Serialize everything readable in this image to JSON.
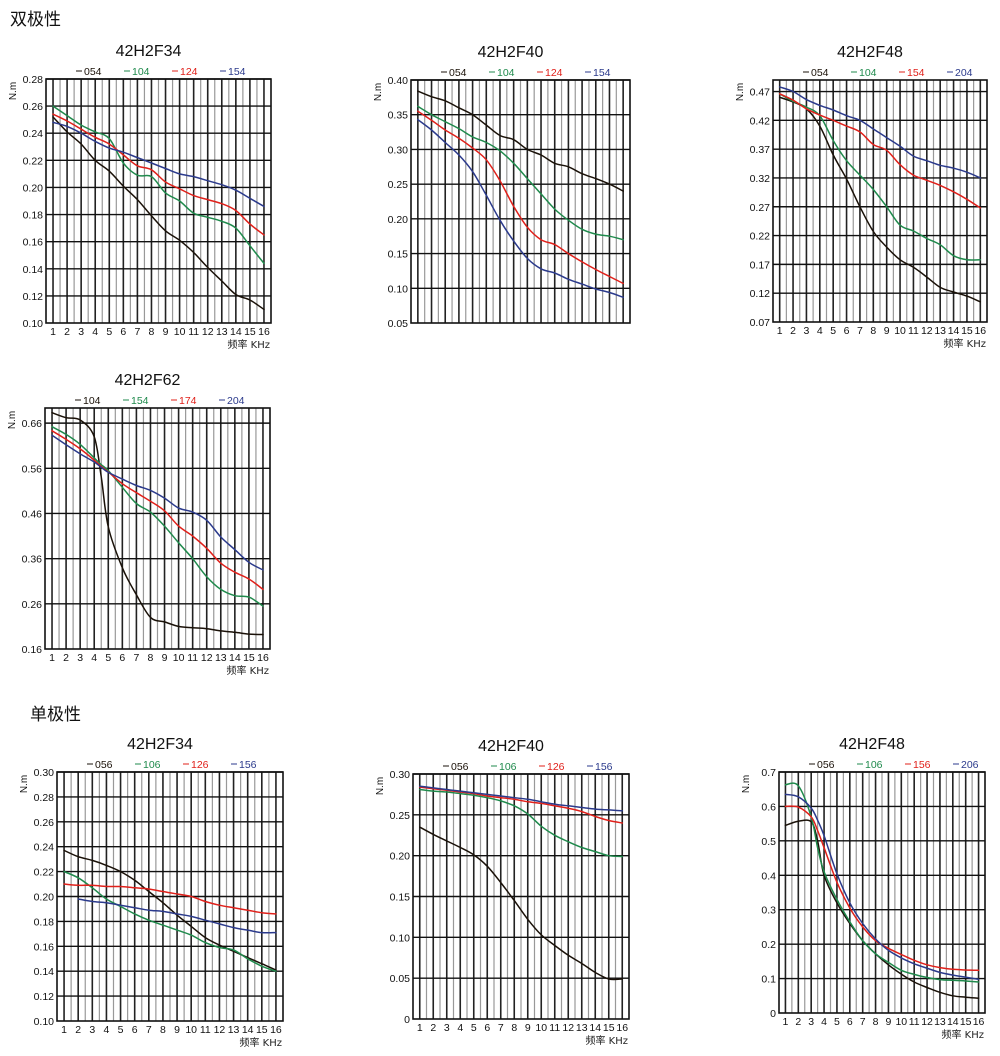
{
  "sections": {
    "bipolar": "双极性",
    "unipolar": "单极性"
  },
  "colors": {
    "black": "#1a1108",
    "green": "#1f8a4c",
    "red": "#e0201a",
    "blue": "#2b3a8c",
    "grid": "#111111"
  },
  "chart_data": [
    {
      "id": "bipolar-42H2F34",
      "type": "line",
      "title": "42H2F34",
      "xlabel": "频率 KHz",
      "ylabel": "N.m",
      "xlim": [
        1,
        16
      ],
      "ylim": [
        0.1,
        0.28
      ],
      "yticks": [
        "0.10",
        "0.12",
        "0.14",
        "0.16",
        "0.18",
        "0.20",
        "0.22",
        "0.24",
        "0.26",
        "0.28"
      ],
      "xticks": [
        "1",
        "2",
        "3",
        "4",
        "5",
        "6",
        "7",
        "8",
        "9",
        "10",
        "11",
        "12",
        "13",
        "14",
        "15",
        "16"
      ],
      "show_xticks": true,
      "grid": true,
      "legend_position": "top",
      "x": [
        1,
        2,
        3,
        4,
        5,
        6,
        7,
        8,
        9,
        10,
        11,
        12,
        13,
        14,
        15,
        16
      ],
      "series": [
        {
          "name": "054",
          "color": "black",
          "values": [
            0.252,
            0.241,
            0.232,
            0.22,
            0.212,
            0.201,
            0.191,
            0.179,
            0.168,
            0.161,
            0.152,
            0.141,
            0.131,
            0.121,
            0.117,
            0.11
          ]
        },
        {
          "name": "104",
          "color": "green",
          "values": [
            0.26,
            0.253,
            0.246,
            0.241,
            0.236,
            0.218,
            0.209,
            0.208,
            0.196,
            0.19,
            0.181,
            0.178,
            0.175,
            0.17,
            0.157,
            0.144
          ]
        },
        {
          "name": "124",
          "color": "red",
          "values": [
            0.254,
            0.249,
            0.243,
            0.237,
            0.232,
            0.224,
            0.216,
            0.213,
            0.204,
            0.199,
            0.194,
            0.191,
            0.188,
            0.183,
            0.173,
            0.165
          ]
        },
        {
          "name": "154",
          "color": "blue",
          "values": [
            0.248,
            0.245,
            0.24,
            0.234,
            0.229,
            0.226,
            0.222,
            0.218,
            0.214,
            0.21,
            0.208,
            0.205,
            0.202,
            0.198,
            0.192,
            0.186
          ]
        }
      ]
    },
    {
      "id": "bipolar-42H2F40",
      "type": "line",
      "title": "42H2F40",
      "xlabel": "",
      "ylabel": "N.m",
      "xlim": [
        1,
        16
      ],
      "ylim": [
        0.05,
        0.4
      ],
      "yticks": [
        "0.05",
        "0.10",
        "0.15",
        "0.20",
        "0.25",
        "0.30",
        "0.35",
        "0.40"
      ],
      "xticks": [],
      "show_xticks": false,
      "grid": true,
      "legend_position": "top",
      "x": [
        1,
        2,
        3,
        4,
        5,
        6,
        7,
        8,
        9,
        10,
        11,
        12,
        13,
        14,
        15,
        16
      ],
      "series": [
        {
          "name": "054",
          "color": "black",
          "values": [
            0.384,
            0.376,
            0.37,
            0.36,
            0.35,
            0.335,
            0.32,
            0.314,
            0.3,
            0.292,
            0.28,
            0.275,
            0.265,
            0.258,
            0.25,
            0.24
          ]
        },
        {
          "name": "104",
          "color": "green",
          "values": [
            0.362,
            0.35,
            0.34,
            0.33,
            0.318,
            0.31,
            0.298,
            0.28,
            0.258,
            0.236,
            0.214,
            0.198,
            0.185,
            0.178,
            0.175,
            0.17
          ]
        },
        {
          "name": "124",
          "color": "red",
          "values": [
            0.355,
            0.342,
            0.328,
            0.316,
            0.302,
            0.285,
            0.255,
            0.218,
            0.188,
            0.17,
            0.163,
            0.15,
            0.138,
            0.127,
            0.117,
            0.107
          ]
        },
        {
          "name": "154",
          "color": "blue",
          "values": [
            0.343,
            0.328,
            0.31,
            0.292,
            0.268,
            0.234,
            0.198,
            0.168,
            0.143,
            0.128,
            0.122,
            0.113,
            0.106,
            0.099,
            0.094,
            0.087
          ]
        }
      ]
    },
    {
      "id": "bipolar-42H2F48",
      "type": "line",
      "title": "42H2F48",
      "xlabel": "频率 KHz",
      "ylabel": "N.m",
      "xlim": [
        1,
        16
      ],
      "ylim": [
        0.07,
        0.5
      ],
      "yticks": [
        "0.07",
        "0.12",
        "0.17",
        "0.22",
        "0.27",
        "0.32",
        "0.37",
        "0.42",
        "0.47"
      ],
      "xticks": [
        "1",
        "2",
        "3",
        "4",
        "5",
        "6",
        "7",
        "8",
        "9",
        "10",
        "11",
        "12",
        "13",
        "14",
        "15",
        "16"
      ],
      "show_xticks": true,
      "grid": true,
      "legend_position": "top",
      "x": [
        1,
        2,
        3,
        4,
        5,
        6,
        7,
        8,
        9,
        10,
        11,
        12,
        13,
        14,
        15,
        16
      ],
      "series": [
        {
          "name": "054",
          "color": "black",
          "values": [
            0.46,
            0.452,
            0.44,
            0.41,
            0.36,
            0.318,
            0.27,
            0.227,
            0.2,
            0.178,
            0.165,
            0.148,
            0.13,
            0.122,
            0.115,
            0.105
          ]
        },
        {
          "name": "104",
          "color": "green",
          "values": [
            0.466,
            0.453,
            0.443,
            0.428,
            0.385,
            0.35,
            0.325,
            0.3,
            0.27,
            0.238,
            0.228,
            0.215,
            0.204,
            0.185,
            0.178,
            0.178
          ]
        },
        {
          "name": "154",
          "color": "red",
          "values": [
            0.466,
            0.455,
            0.44,
            0.429,
            0.42,
            0.41,
            0.4,
            0.378,
            0.368,
            0.343,
            0.325,
            0.316,
            0.307,
            0.296,
            0.283,
            0.268
          ]
        },
        {
          "name": "204",
          "color": "blue",
          "values": [
            0.478,
            0.47,
            0.456,
            0.446,
            0.438,
            0.428,
            0.42,
            0.405,
            0.39,
            0.375,
            0.358,
            0.35,
            0.342,
            0.337,
            0.33,
            0.32
          ]
        }
      ]
    },
    {
      "id": "bipolar-42H2F62",
      "type": "line",
      "title": "42H2F62",
      "xlabel": "频率 KHz",
      "ylabel": "N.m",
      "xlim": [
        1,
        16
      ],
      "ylim": [
        0.16,
        0.71
      ],
      "yticks": [
        "0.16",
        "0.26",
        "0.36",
        "0.46",
        "0.56",
        "0.66"
      ],
      "xticks": [
        "1",
        "2",
        "3",
        "4",
        "5",
        "6",
        "7",
        "8",
        "9",
        "10",
        "11",
        "12",
        "13",
        "14",
        "15",
        "16"
      ],
      "show_xticks": true,
      "grid": true,
      "legend_position": "top",
      "x": [
        1,
        2,
        3,
        4,
        4.5,
        5,
        6,
        7,
        8,
        9,
        10,
        11,
        12,
        13,
        14,
        15,
        16
      ],
      "series": [
        {
          "name": "104",
          "color": "black",
          "values": [
            0.683,
            0.672,
            0.667,
            0.63,
            0.54,
            0.43,
            0.34,
            0.28,
            0.23,
            0.22,
            0.21,
            0.207,
            0.205,
            0.2,
            0.197,
            0.193,
            0.192
          ]
        },
        {
          "name": "154",
          "color": "green",
          "values": [
            0.652,
            0.635,
            0.613,
            0.583,
            0.568,
            0.555,
            0.518,
            0.482,
            0.463,
            0.432,
            0.395,
            0.36,
            0.32,
            0.292,
            0.278,
            0.275,
            0.255
          ]
        },
        {
          "name": "174",
          "color": "red",
          "values": [
            0.643,
            0.624,
            0.603,
            0.578,
            0.564,
            0.552,
            0.526,
            0.506,
            0.487,
            0.466,
            0.432,
            0.41,
            0.383,
            0.35,
            0.33,
            0.315,
            0.292
          ]
        },
        {
          "name": "204",
          "color": "blue",
          "values": [
            0.633,
            0.612,
            0.592,
            0.574,
            0.562,
            0.551,
            0.536,
            0.522,
            0.511,
            0.494,
            0.472,
            0.463,
            0.445,
            0.408,
            0.38,
            0.352,
            0.335
          ]
        }
      ]
    },
    {
      "id": "unipolar-42H2F34",
      "type": "line",
      "title": "42H2F34",
      "xlabel": "频率 KHz",
      "ylabel": "N.m",
      "xlim": [
        1,
        16
      ],
      "ylim": [
        0.1,
        0.3
      ],
      "yticks": [
        "0.10",
        "0.12",
        "0.14",
        "0.16",
        "0.18",
        "0.20",
        "0.22",
        "0.24",
        "0.26",
        "0.28",
        "0.30"
      ],
      "xticks": [
        "1",
        "2",
        "3",
        "4",
        "5",
        "6",
        "7",
        "8",
        "9",
        "10",
        "11",
        "12",
        "13",
        "14",
        "15",
        "16"
      ],
      "show_xticks": true,
      "grid": true,
      "legend_position": "top",
      "x": [
        1,
        2,
        3,
        4,
        5,
        6,
        7,
        8,
        9,
        10,
        11,
        12,
        13,
        14,
        15,
        16
      ],
      "series": [
        {
          "name": "056",
          "color": "black",
          "values": [
            0.237,
            0.232,
            0.229,
            0.225,
            0.22,
            0.213,
            0.204,
            0.195,
            0.185,
            0.176,
            0.167,
            0.161,
            0.156,
            0.151,
            0.146,
            0.141
          ]
        },
        {
          "name": "106",
          "color": "green",
          "values": [
            0.22,
            0.215,
            0.207,
            0.198,
            0.192,
            0.186,
            0.181,
            0.177,
            0.173,
            0.169,
            0.163,
            0.159,
            0.157,
            0.15,
            0.144,
            0.14
          ]
        },
        {
          "name": "126",
          "color": "red",
          "values": [
            0.21,
            0.209,
            0.209,
            0.208,
            0.208,
            0.207,
            0.206,
            0.204,
            0.202,
            0.2,
            0.196,
            0.193,
            0.191,
            0.189,
            0.187,
            0.186
          ]
        },
        {
          "name": "156",
          "color": "blue",
          "values": [
            null,
            0.198,
            0.196,
            0.195,
            0.193,
            0.191,
            0.189,
            0.188,
            0.186,
            0.184,
            0.181,
            0.178,
            0.175,
            0.173,
            0.171,
            0.171
          ]
        }
      ]
    },
    {
      "id": "unipolar-42H2F40",
      "type": "line",
      "title": "42H2F40",
      "xlabel": "频率 KHz",
      "ylabel": "N.m",
      "xlim": [
        1,
        16
      ],
      "ylim": [
        0,
        0.3
      ],
      "yticks": [
        "0",
        "0.05",
        "0.10",
        "0.15",
        "0.20",
        "0.25",
        "0.30"
      ],
      "xticks": [
        "1",
        "2",
        "3",
        "4",
        "5",
        "6",
        "7",
        "8",
        "9",
        "10",
        "11",
        "12",
        "13",
        "14",
        "15",
        "16"
      ],
      "show_xticks": true,
      "grid": true,
      "legend_position": "top",
      "x": [
        1,
        2,
        3,
        4,
        5,
        6,
        7,
        8,
        9,
        10,
        11,
        12,
        13,
        14,
        15,
        16
      ],
      "series": [
        {
          "name": "056",
          "color": "black",
          "values": [
            0.235,
            0.226,
            0.218,
            0.21,
            0.201,
            0.187,
            0.167,
            0.145,
            0.122,
            0.103,
            0.09,
            0.078,
            0.068,
            0.057,
            0.049,
            0.049
          ]
        },
        {
          "name": "106",
          "color": "green",
          "values": [
            0.281,
            0.279,
            0.278,
            0.276,
            0.274,
            0.271,
            0.267,
            0.261,
            0.251,
            0.236,
            0.225,
            0.217,
            0.21,
            0.205,
            0.2,
            0.199
          ]
        },
        {
          "name": "126",
          "color": "red",
          "values": [
            0.284,
            0.282,
            0.28,
            0.278,
            0.276,
            0.273,
            0.271,
            0.269,
            0.266,
            0.264,
            0.261,
            0.258,
            0.254,
            0.248,
            0.243,
            0.24
          ]
        },
        {
          "name": "156",
          "color": "blue",
          "values": [
            0.285,
            0.283,
            0.281,
            0.279,
            0.277,
            0.275,
            0.273,
            0.271,
            0.269,
            0.266,
            0.263,
            0.261,
            0.259,
            0.257,
            0.256,
            0.255
          ]
        }
      ]
    },
    {
      "id": "unipolar-42H2F48",
      "type": "line",
      "title": "42H2F48",
      "xlabel": "频率 KHz",
      "ylabel": "N.m",
      "xlim": [
        1,
        16
      ],
      "ylim": [
        0,
        0.7
      ],
      "yticks": [
        "0",
        "0.1",
        "0.2",
        "0.3",
        "0.4",
        "0.5",
        "0.6",
        "0.7"
      ],
      "xticks": [
        "1",
        "2",
        "3",
        "4",
        "5",
        "6",
        "7",
        "8",
        "9",
        "10",
        "11",
        "12",
        "13",
        "14",
        "15",
        "16"
      ],
      "show_xticks": true,
      "grid": true,
      "legend_position": "top",
      "x": [
        1,
        2,
        3,
        3.5,
        4,
        5,
        6,
        7,
        8,
        9,
        10,
        11,
        12,
        13,
        14,
        15,
        16
      ],
      "series": [
        {
          "name": "056",
          "color": "black",
          "values": [
            0.545,
            0.557,
            0.555,
            0.5,
            0.4,
            0.32,
            0.26,
            0.21,
            0.172,
            0.14,
            0.113,
            0.09,
            0.074,
            0.06,
            0.05,
            0.046,
            0.043
          ]
        },
        {
          "name": "106",
          "color": "green",
          "values": [
            0.663,
            0.66,
            0.57,
            0.48,
            0.41,
            0.33,
            0.265,
            0.21,
            0.172,
            0.147,
            0.124,
            0.112,
            0.103,
            0.097,
            0.095,
            0.093,
            0.09
          ]
        },
        {
          "name": "156",
          "color": "red",
          "values": [
            0.6,
            0.598,
            0.57,
            0.53,
            0.48,
            0.38,
            0.305,
            0.25,
            0.21,
            0.188,
            0.17,
            0.153,
            0.14,
            0.132,
            0.127,
            0.125,
            0.124
          ]
        },
        {
          "name": "206",
          "color": "blue",
          "values": [
            0.635,
            0.628,
            0.595,
            0.56,
            0.515,
            0.405,
            0.32,
            0.26,
            0.215,
            0.182,
            0.16,
            0.143,
            0.13,
            0.118,
            0.11,
            0.104,
            0.098
          ]
        }
      ]
    }
  ]
}
